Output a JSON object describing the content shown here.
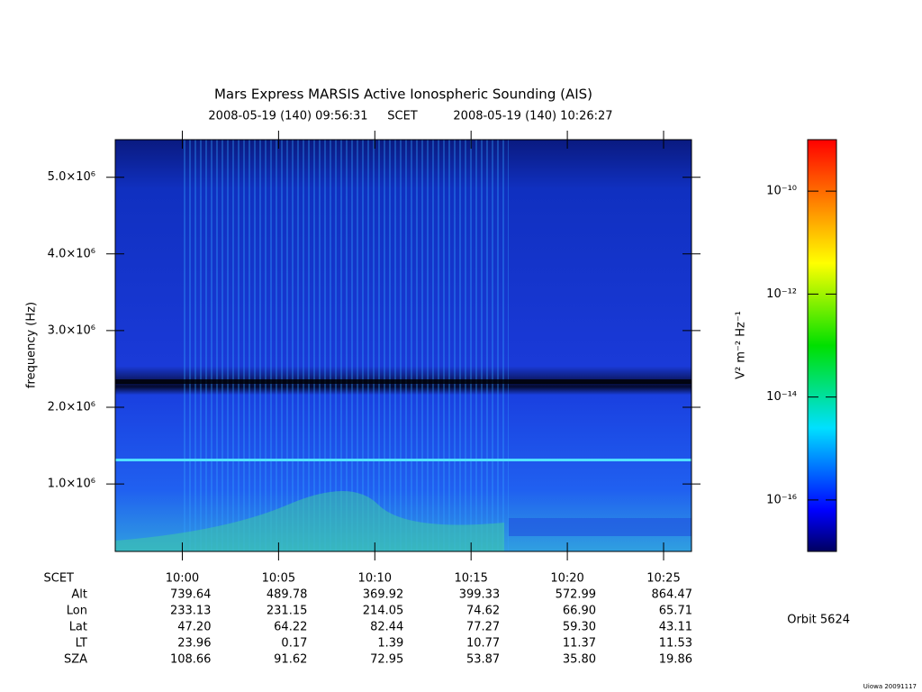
{
  "chart_data": {
    "type": "spectrogram",
    "title": "Mars Express MARSIS Active Ionospheric Sounding (AIS)",
    "start": "2008-05-19 (140) 09:56:31",
    "frame": "SCET",
    "end": "2008-05-19 (140) 10:26:27",
    "ylabel": "frequency (Hz)",
    "ylim": [
      120000,
      5490000
    ],
    "yticks": [
      {
        "value": 1000000,
        "label": "1.0×10⁶"
      },
      {
        "value": 2000000,
        "label": "2.0×10⁶"
      },
      {
        "value": 3000000,
        "label": "3.0×10⁶"
      },
      {
        "value": 4000000,
        "label": "4.0×10⁶"
      },
      {
        "value": 5000000,
        "label": "5.0×10⁶"
      }
    ],
    "xticks": [
      "10:00",
      "10:05",
      "10:10",
      "10:15",
      "10:20",
      "10:25"
    ],
    "colorbar": {
      "label": "V² m⁻² Hz⁻¹",
      "log": true,
      "zlim": [
        1e-17,
        1e-09
      ],
      "ticks": [
        {
          "value": 1e-10,
          "label": "10⁻¹⁰"
        },
        {
          "value": 1e-12,
          "label": "10⁻¹²"
        },
        {
          "value": 1e-14,
          "label": "10⁻¹⁴"
        },
        {
          "value": 1e-16,
          "label": "10⁻¹⁶"
        }
      ]
    },
    "ephemeris": {
      "time_label": "SCET",
      "rows": [
        {
          "name": "Alt",
          "values": [
            "739.64",
            "489.78",
            "369.92",
            "399.33",
            "572.99",
            "864.47"
          ]
        },
        {
          "name": "Lon",
          "values": [
            "233.13",
            "231.15",
            "214.05",
            "74.62",
            "66.90",
            "65.71"
          ]
        },
        {
          "name": "Lat",
          "values": [
            "47.20",
            "64.22",
            "82.44",
            "77.27",
            "59.30",
            "43.11"
          ]
        },
        {
          "name": "LT",
          "values": [
            "23.96",
            "0.17",
            "1.39",
            "10.77",
            "11.37",
            "11.53"
          ]
        },
        {
          "name": "SZA",
          "values": [
            "108.66",
            "91.62",
            "72.95",
            "53.87",
            "35.80",
            "19.86"
          ]
        }
      ]
    },
    "orbit": "Orbit 5624",
    "footer": "Uiowa 20091117"
  }
}
